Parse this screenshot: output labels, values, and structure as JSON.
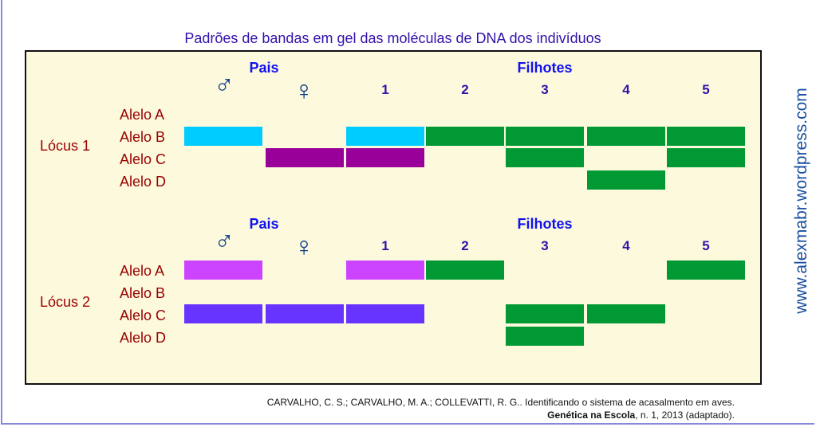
{
  "title": "Padrões de bandas em gel das moléculas de DNA dos indivíduos",
  "header": {
    "parents": "Pais",
    "offspring": "Filhotes",
    "male_symbol": "♂",
    "female_symbol": "♀",
    "numbers": [
      "1",
      "2",
      "3",
      "4",
      "5"
    ]
  },
  "alleles": [
    "Alelo A",
    "Alelo B",
    "Alelo C",
    "Alelo D"
  ],
  "colors": {
    "cyan": "#00ccff",
    "purple": "#990099",
    "green": "#009933",
    "magenta": "#cc44ff",
    "violet": "#6633ff"
  },
  "loci": [
    {
      "label": "Lócus 1",
      "lanes": [
        [
          {
            "allele": 1,
            "color": "cyan"
          }
        ],
        [
          {
            "allele": 2,
            "color": "purple"
          }
        ],
        [
          {
            "allele": 1,
            "color": "cyan"
          },
          {
            "allele": 2,
            "color": "purple"
          }
        ],
        [
          {
            "allele": 1,
            "color": "green"
          }
        ],
        [
          {
            "allele": 1,
            "color": "green"
          },
          {
            "allele": 2,
            "color": "green"
          }
        ],
        [
          {
            "allele": 1,
            "color": "green"
          },
          {
            "allele": 3,
            "color": "green"
          }
        ],
        [
          {
            "allele": 1,
            "color": "green"
          },
          {
            "allele": 2,
            "color": "green"
          }
        ]
      ]
    },
    {
      "label": "Lócus 2",
      "lanes": [
        [
          {
            "allele": 0,
            "color": "magenta"
          },
          {
            "allele": 2,
            "color": "violet"
          }
        ],
        [
          {
            "allele": 2,
            "color": "violet"
          }
        ],
        [
          {
            "allele": 0,
            "color": "magenta"
          },
          {
            "allele": 2,
            "color": "violet"
          }
        ],
        [
          {
            "allele": 0,
            "color": "green"
          }
        ],
        [
          {
            "allele": 2,
            "color": "green"
          },
          {
            "allele": 3,
            "color": "green"
          }
        ],
        [
          {
            "allele": 2,
            "color": "green"
          }
        ],
        [
          {
            "allele": 0,
            "color": "green"
          }
        ]
      ]
    }
  ],
  "citation": {
    "line1": "CARVALHO, C. S.; CARVALHO, M. A.; COLLEVATTI, R. G..  Identificando o sistema de acasalmento em aves.",
    "journal": "Genética na Escola",
    "line2_rest": ", n. 1, 2013 (adaptado)."
  },
  "watermark": "www.alexmabr.wordpress.com"
}
